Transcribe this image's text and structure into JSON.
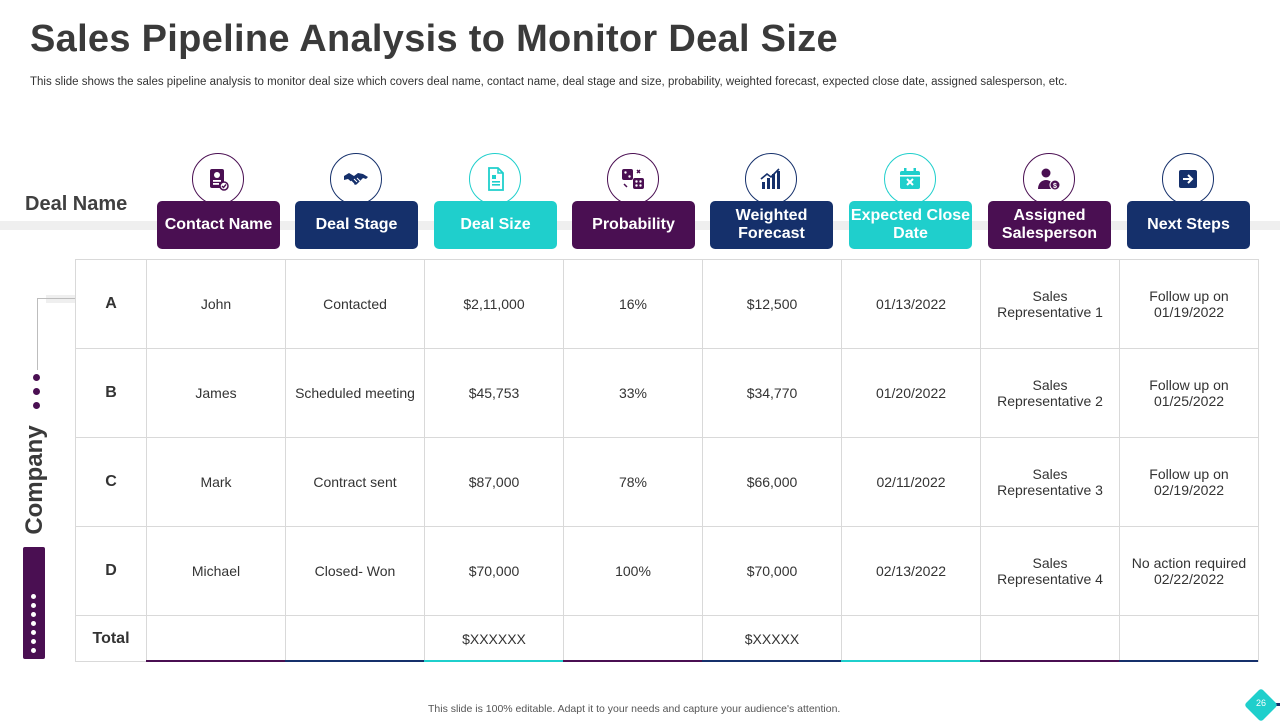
{
  "title": "Sales Pipeline Analysis to Monitor Deal Size",
  "subtitle": "This slide shows the sales pipeline analysis to monitor deal size which covers deal name, contact name, deal stage and size, probability, weighted forecast, expected close date, assigned salesperson, etc.",
  "labels": {
    "deal_name": "Deal Name",
    "company": "Company"
  },
  "columns": [
    {
      "label": "Contact Name",
      "icon": "contact-card-icon",
      "color": "#4a0f52"
    },
    {
      "label": "Deal Stage",
      "icon": "handshake-icon",
      "color": "#15306b"
    },
    {
      "label": "Deal Size",
      "icon": "document-icon",
      "color": "#1fcfcc"
    },
    {
      "label": "Probability",
      "icon": "dice-icon",
      "color": "#4a0f52"
    },
    {
      "label": "Weighted Forecast",
      "icon": "growth-chart-icon",
      "color": "#15306b"
    },
    {
      "label": "Expected Close Date",
      "icon": "calendar-icon",
      "color": "#1fcfcc"
    },
    {
      "label": "Assigned Salesperson",
      "icon": "salesperson-icon",
      "color": "#4a0f52"
    },
    {
      "label": "Next Steps",
      "icon": "arrow-right-icon",
      "color": "#15306b"
    }
  ],
  "rows": [
    {
      "label": "A",
      "cells": [
        "John",
        "Contacted",
        "$2,11,000",
        "16%",
        "$12,500",
        "01/13/2022",
        "Sales Representative 1",
        "Follow up on 01/19/2022"
      ]
    },
    {
      "label": "B",
      "cells": [
        "James",
        "Scheduled meeting",
        "$45,753",
        "33%",
        "$34,770",
        "01/20/2022",
        "Sales Representative 2",
        "Follow up on 01/25/2022"
      ]
    },
    {
      "label": "C",
      "cells": [
        "Mark",
        "Contract sent",
        "$87,000",
        "78%",
        "$66,000",
        "02/11/2022",
        "Sales Representative 3",
        "Follow up on 02/19/2022"
      ]
    },
    {
      "label": "D",
      "cells": [
        "Michael",
        "Closed- Won",
        "$70,000",
        "100%",
        "$70,000",
        "02/13/2022",
        "Sales Representative 4",
        "No action required 02/22/2022"
      ]
    },
    {
      "label": "Total",
      "cells": [
        "",
        "",
        "$XXXXXX",
        "",
        "$XXXXX",
        "",
        "",
        ""
      ]
    }
  ],
  "footer": "This slide is 100% editable.  Adapt it to your needs and capture your audience's attention.",
  "page_number": "26"
}
